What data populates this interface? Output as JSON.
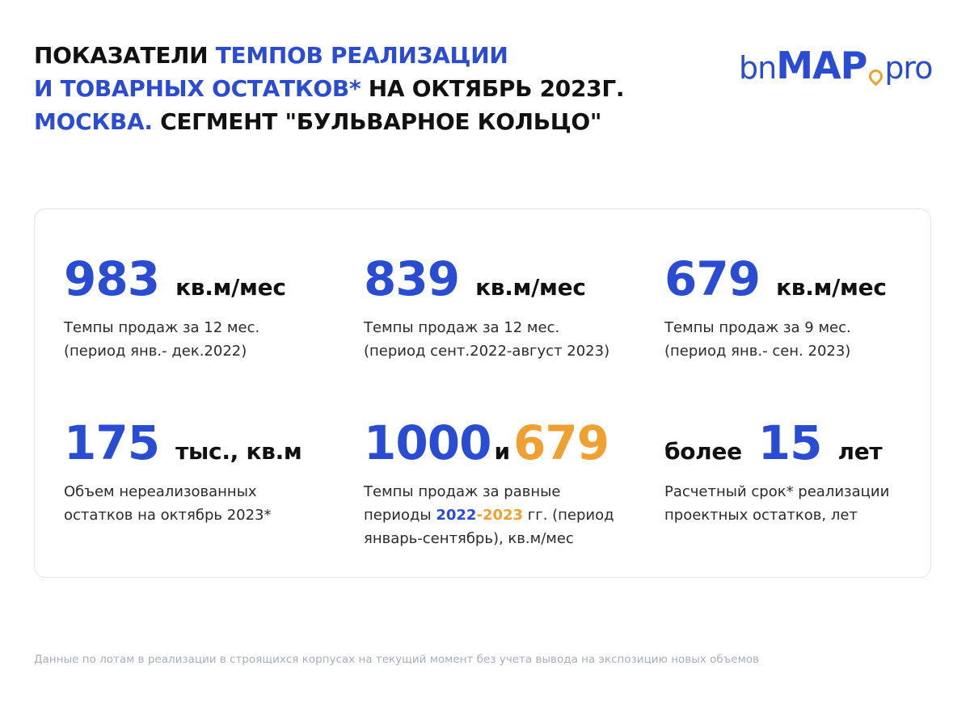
{
  "title": {
    "line1": {
      "part1": "Показатели ",
      "part2": "темпов реализации"
    },
    "line2": {
      "part1": "и товарных остатков*",
      "part2": " на октябрь 2023г."
    },
    "line3": {
      "part1": "Москва.",
      "part2": " Сегмент \"Бульварное кольцо\""
    }
  },
  "logo": {
    "part1": "bn",
    "part2": "MAP",
    "part3": "pro",
    "icon": "location-pin-icon"
  },
  "stats": {
    "s1": {
      "value": "983",
      "unit": "кв.м/мес",
      "desc_line1": "Темпы продаж за 12 мес.",
      "desc_line2": "(период янв.- дек.2022)"
    },
    "s2": {
      "value": "839",
      "unit": "кв.м/мес",
      "desc_line1": "Темпы продаж за 12 мес.",
      "desc_line2": "(период сент.2022-август 2023)"
    },
    "s3": {
      "value": "679",
      "unit": "кв.м/мес",
      "desc_line1": "Темпы продаж за 9 мес.",
      "desc_line2": "(период янв.- сен. 2023)"
    },
    "s4": {
      "value": "175",
      "unit": "тыс., кв.м",
      "desc_line1": "Объем нереализованных",
      "desc_line2": "остатков на октябрь 2023*"
    },
    "s5": {
      "value1": "1000",
      "conj": "и",
      "value2": "679",
      "desc_line1": "Темпы продаж за равные",
      "desc_line2_pre": "периоды ",
      "year1": "2022",
      "dash": "-",
      "year2": "2023",
      "desc_line2_post": " гг. (период",
      "desc_line3": "январь-сентябрь), кв.м/мес"
    },
    "s6": {
      "prefix": "более",
      "value": "15",
      "unit": "лет",
      "desc_line1": "Расчетный срок* реализации",
      "desc_line2": "проектных остатков, лет"
    }
  },
  "footnote": "Данные по лотам в реализации в строящихся корпусах на текущий момент без учета вывода на экспозицию новых объемов",
  "colors": {
    "accent": "#2a4cd3",
    "highlight": "#f0a030"
  }
}
